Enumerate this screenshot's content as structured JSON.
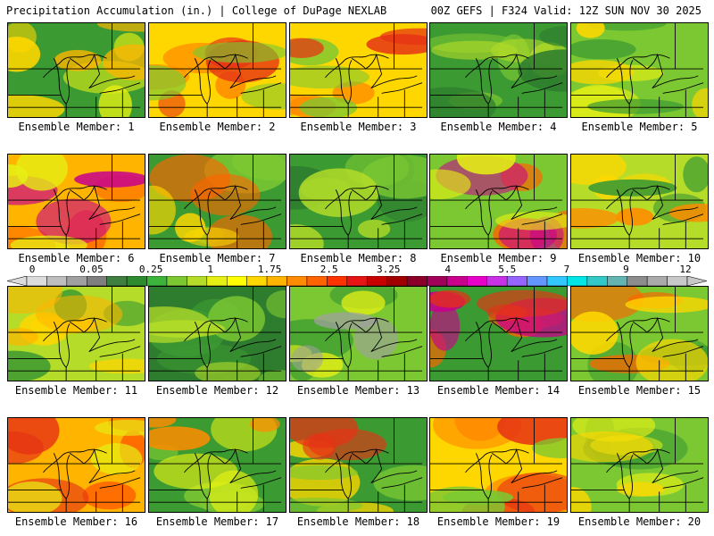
{
  "header": {
    "left_title": "Precipitation Accumulation (in.) | College of DuPage NEXLAB",
    "right_title": "00Z GEFS | F324 Valid: 12Z SUN NOV 30 2025"
  },
  "colorbar": {
    "tick_labels": [
      "0",
      "0.05",
      "0.25",
      "1",
      "1.75",
      "2.5",
      "3.25",
      "4",
      "5.5",
      "7",
      "9",
      "12"
    ],
    "swatches": [
      "#dcdcdc",
      "#bebebe",
      "#a0a0a0",
      "#7f7f7f",
      "#3f7f3f",
      "#2e8b2e",
      "#3cb43c",
      "#7cc832",
      "#b4dc28",
      "#e6f014",
      "#ffff00",
      "#ffd700",
      "#ffb400",
      "#ff8c00",
      "#ff6400",
      "#ff3200",
      "#e61414",
      "#c80000",
      "#a00000",
      "#8b0028",
      "#a0005a",
      "#c8008c",
      "#e600c8",
      "#c832e6",
      "#9664ff",
      "#6496ff",
      "#32c8ff",
      "#00e6e6",
      "#32c8c8",
      "#64b4b4",
      "#8c8c8c",
      "#aaaaaa",
      "#c8c8c8"
    ]
  },
  "members": [
    {
      "label": "Ensemble Member: 1",
      "base": "#3c9a32",
      "blobs": [
        "#e6f014",
        "#ffd700",
        "#ffb400"
      ]
    },
    {
      "label": "Ensemble Member: 2",
      "base": "#ffd700",
      "blobs": [
        "#ff8c00",
        "#e63214",
        "#7cc832"
      ]
    },
    {
      "label": "Ensemble Member: 3",
      "base": "#ffd700",
      "blobs": [
        "#ff8c00",
        "#7cc832",
        "#e63214"
      ]
    },
    {
      "label": "Ensemble Member: 4",
      "base": "#3c9a32",
      "blobs": [
        "#7cc832",
        "#b4dc28",
        "#2e7d2e"
      ]
    },
    {
      "label": "Ensemble Member: 5",
      "base": "#7cc832",
      "blobs": [
        "#e6f014",
        "#3c9a32",
        "#ffd700"
      ]
    },
    {
      "label": "Ensemble Member: 6",
      "base": "#ffb400",
      "blobs": [
        "#ff6400",
        "#c8008c",
        "#e6f014"
      ]
    },
    {
      "label": "Ensemble Member: 7",
      "base": "#3c9a32",
      "blobs": [
        "#7cc832",
        "#ff6400",
        "#ffd700"
      ]
    },
    {
      "label": "Ensemble Member: 8",
      "base": "#3c9a32",
      "blobs": [
        "#2e7d2e",
        "#7cc832",
        "#b4dc28"
      ]
    },
    {
      "label": "Ensemble Member: 9",
      "base": "#7cc832",
      "blobs": [
        "#ff6400",
        "#c8008c",
        "#e6f014"
      ]
    },
    {
      "label": "Ensemble Member: 10",
      "base": "#b4dc28",
      "blobs": [
        "#ffd700",
        "#3c9a32",
        "#ff8c00"
      ]
    },
    {
      "label": "Ensemble Member: 11",
      "base": "#b4dc28",
      "blobs": [
        "#ffd700",
        "#3c9a32",
        "#ffb400"
      ]
    },
    {
      "label": "Ensemble Member: 12",
      "base": "#2e7d2e",
      "blobs": [
        "#3c9a32",
        "#7cc832",
        "#b4dc28"
      ]
    },
    {
      "label": "Ensemble Member: 13",
      "base": "#7cc832",
      "blobs": [
        "#3c9a32",
        "#e6f014",
        "#a0a0a0"
      ]
    },
    {
      "label": "Ensemble Member: 14",
      "base": "#3c9a32",
      "blobs": [
        "#ff6400",
        "#c8008c",
        "#e63214"
      ]
    },
    {
      "label": "Ensemble Member: 15",
      "base": "#7cc832",
      "blobs": [
        "#3c9a32",
        "#ff6400",
        "#ffd700"
      ]
    },
    {
      "label": "Ensemble Member: 16",
      "base": "#ffb400",
      "blobs": [
        "#ff6400",
        "#e63214",
        "#e6f014"
      ]
    },
    {
      "label": "Ensemble Member: 17",
      "base": "#3c9a32",
      "blobs": [
        "#7cc832",
        "#e6f014",
        "#ff8c00"
      ]
    },
    {
      "label": "Ensemble Member: 18",
      "base": "#3c9a32",
      "blobs": [
        "#ffd700",
        "#e63214",
        "#7cc832"
      ]
    },
    {
      "label": "Ensemble Member: 19",
      "base": "#ffd700",
      "blobs": [
        "#ff8c00",
        "#e63214",
        "#7cc832"
      ]
    },
    {
      "label": "Ensemble Member: 20",
      "base": "#7cc832",
      "blobs": [
        "#3c9a32",
        "#e6f014",
        "#ffd700"
      ]
    }
  ]
}
